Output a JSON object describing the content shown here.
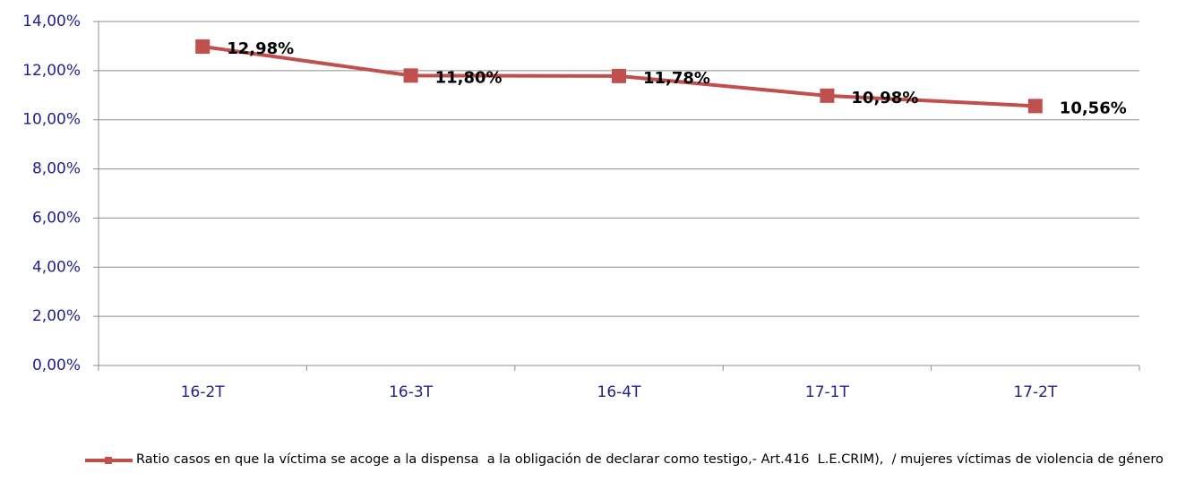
{
  "chart_data": {
    "type": "line",
    "categories": [
      "16-2T",
      "16-3T",
      "16-4T",
      "17-1T",
      "17-2T"
    ],
    "series": [
      {
        "name": "Ratio casos en que la víctima se acoge a la dispensa  a la obligación de declarar como testigo,- Art.416  L.E.CRIM),  / mujeres víctimas de violencia de género",
        "color": "#c0504d",
        "values": [
          12.98,
          11.8,
          11.78,
          10.98,
          10.56
        ],
        "value_labels": [
          "12,98%",
          "11,80%",
          "11,78%",
          "10,98%",
          "10,56%"
        ]
      }
    ],
    "ylim": [
      0,
      14
    ],
    "yticks": [
      {
        "value": 0,
        "label": "0,00%"
      },
      {
        "value": 2,
        "label": "2,00%"
      },
      {
        "value": 4,
        "label": "4,00%"
      },
      {
        "value": 6,
        "label": "6,00%"
      },
      {
        "value": 8,
        "label": "8,00%"
      },
      {
        "value": 10,
        "label": "10,00%"
      },
      {
        "value": 12,
        "label": "12,00%"
      },
      {
        "value": 14,
        "label": "14,00%"
      }
    ],
    "grid": true,
    "legend": "bottom"
  }
}
